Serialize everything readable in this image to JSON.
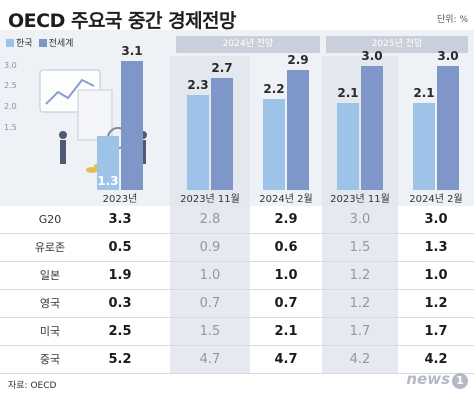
{
  "title": "OECD 주요국 중간 경제전망",
  "unit": "단위: %",
  "legend": {
    "korea": "한국",
    "world": "전세계"
  },
  "period_headers": {
    "h2024": "2024년 전망",
    "h2025": "2025년 전망"
  },
  "source": "자료: OECD",
  "logo": {
    "text": "news",
    "mark": "1"
  },
  "colors": {
    "korea": "#9dc3e8",
    "world": "#7f97c8",
    "header": "#c9d0db"
  },
  "chart_data": {
    "type": "bar",
    "categories": [
      "2023년",
      "2023년 11월",
      "2024년 2월",
      "2023년 11월",
      "2024년 2월"
    ],
    "series": [
      {
        "name": "한국",
        "values": [
          1.3,
          2.3,
          2.2,
          2.1,
          2.1
        ]
      },
      {
        "name": "전세계",
        "values": [
          3.1,
          2.7,
          2.9,
          3.0,
          3.0
        ]
      }
    ],
    "yticks": [
      "3.0",
      "2.5",
      "2.0",
      "1.5"
    ],
    "ylim": [
      0,
      3.6
    ]
  },
  "table": {
    "columns": [
      "2023년",
      "2023년 11월",
      "2024년 2월",
      "2023년 11월",
      "2024년 2월"
    ],
    "rows": [
      {
        "label": "G20",
        "values": [
          "3.3",
          "2.8",
          "2.9",
          "3.0",
          "3.0"
        ]
      },
      {
        "label": "유로존",
        "values": [
          "0.5",
          "0.9",
          "0.6",
          "1.5",
          "1.3"
        ]
      },
      {
        "label": "일본",
        "values": [
          "1.9",
          "1.0",
          "1.0",
          "1.2",
          "1.0"
        ]
      },
      {
        "label": "영국",
        "values": [
          "0.3",
          "0.7",
          "0.7",
          "1.2",
          "1.2"
        ]
      },
      {
        "label": "미국",
        "values": [
          "2.5",
          "1.5",
          "2.1",
          "1.7",
          "1.7"
        ]
      },
      {
        "label": "중국",
        "values": [
          "5.2",
          "4.7",
          "4.7",
          "4.2",
          "4.2"
        ]
      }
    ]
  }
}
